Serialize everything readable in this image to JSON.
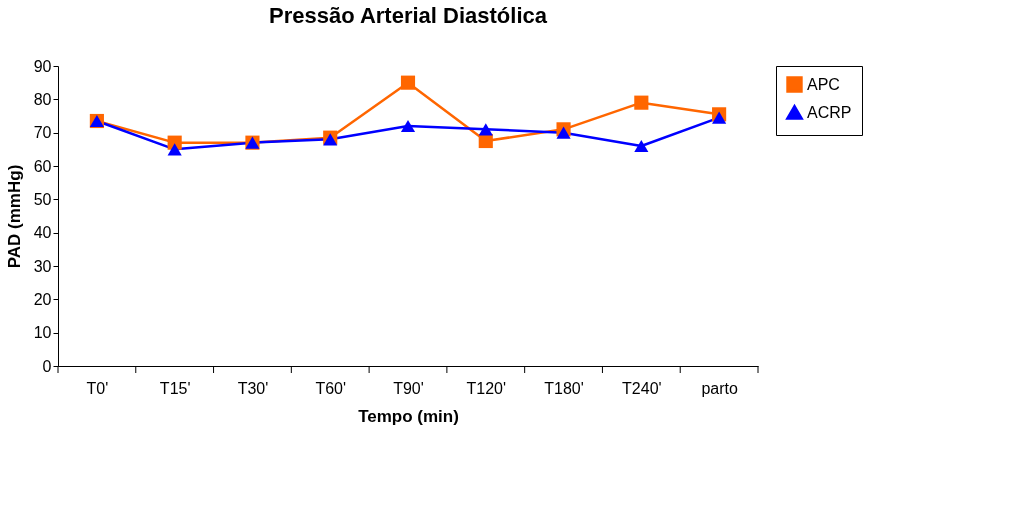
{
  "chart_data": {
    "type": "line",
    "title": "Pressão Arterial Diastólica",
    "xlabel": "Tempo (min)",
    "ylabel": "PAD (mmHg)",
    "categories": [
      "T0'",
      "T15'",
      "T30'",
      "T60'",
      "T90'",
      "T120'",
      "T180'",
      "T240'",
      "parto"
    ],
    "series": [
      {
        "name": "APC",
        "color": "#ff6600",
        "marker": "square",
        "values": [
          73.5,
          67,
          67,
          68.5,
          85,
          67.5,
          71,
          79,
          75.5
        ]
      },
      {
        "name": "ACRP",
        "color": "#0000ff",
        "marker": "triangle",
        "values": [
          73.5,
          65,
          67,
          68,
          72,
          71,
          70,
          66,
          74.5
        ]
      }
    ],
    "ylim": [
      0,
      90
    ],
    "yticks": [
      0,
      10,
      20,
      30,
      40,
      50,
      60,
      70,
      80,
      90
    ],
    "grid": false,
    "legend": "right",
    "line_style": "solid"
  }
}
